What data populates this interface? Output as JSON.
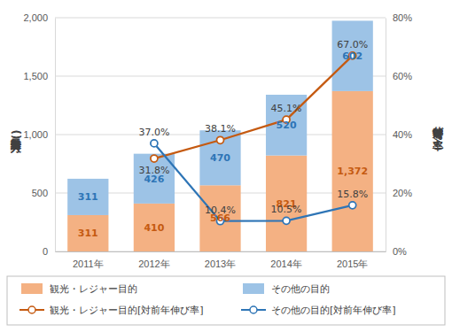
{
  "chart_data": {
    "type": "bar",
    "stacked": true,
    "data_labels": true,
    "grid": true,
    "legend": "bottom",
    "y_label": "訪日外客数(万人)",
    "y2_label": "対前年伸び率(%)",
    "categories": [
      "2011年",
      "2012年",
      "2013年",
      "2014年",
      "2015年"
    ],
    "ylim": [
      0,
      2000
    ],
    "yticks": [
      0,
      500,
      {
        "value": 1000,
        "label": "1,000"
      },
      {
        "value": 1500,
        "label": "1,500"
      },
      {
        "value": 2000,
        "label": "2,000"
      }
    ],
    "y2lim": [
      0,
      80
    ],
    "y2ticks": [
      {
        "value": 0,
        "label": "0%"
      },
      {
        "value": 20,
        "label": "20%"
      },
      {
        "value": 40,
        "label": "40%"
      },
      {
        "value": 60,
        "label": "60%"
      },
      {
        "value": 80,
        "label": "80%"
      }
    ],
    "series": [
      {
        "name": "観光・レジャー目的",
        "type": "bar",
        "color": "#F4B183",
        "values": [
          311,
          410,
          566,
          821,
          1372
        ],
        "value_labels": [
          "311",
          "410",
          "566",
          "821",
          "1,372"
        ]
      },
      {
        "name": "その他の目的",
        "type": "bar",
        "color": "#9DC3E6",
        "values": [
          311,
          426,
          470,
          520,
          602
        ],
        "value_labels": [
          "311",
          "426",
          "470",
          "520",
          "602"
        ]
      },
      {
        "name": "観光・レジャー目的[対前年伸び率]",
        "type": "line",
        "axis": "y2",
        "color": "#C55A11",
        "marker": "circle",
        "values": [
          null,
          31.8,
          38.1,
          45.1,
          67.0
        ],
        "value_labels": [
          null,
          "31.8%",
          "38.1%",
          "45.1%",
          "67.0%"
        ]
      },
      {
        "name": "その他の目的[対前年伸び率]",
        "type": "line",
        "axis": "y2",
        "color": "#2E75B6",
        "marker": "circle",
        "values": [
          null,
          37.0,
          10.4,
          10.5,
          15.8
        ],
        "value_labels": [
          null,
          "37.0%",
          "10.4%",
          "10.5%",
          "15.8%"
        ]
      }
    ]
  }
}
